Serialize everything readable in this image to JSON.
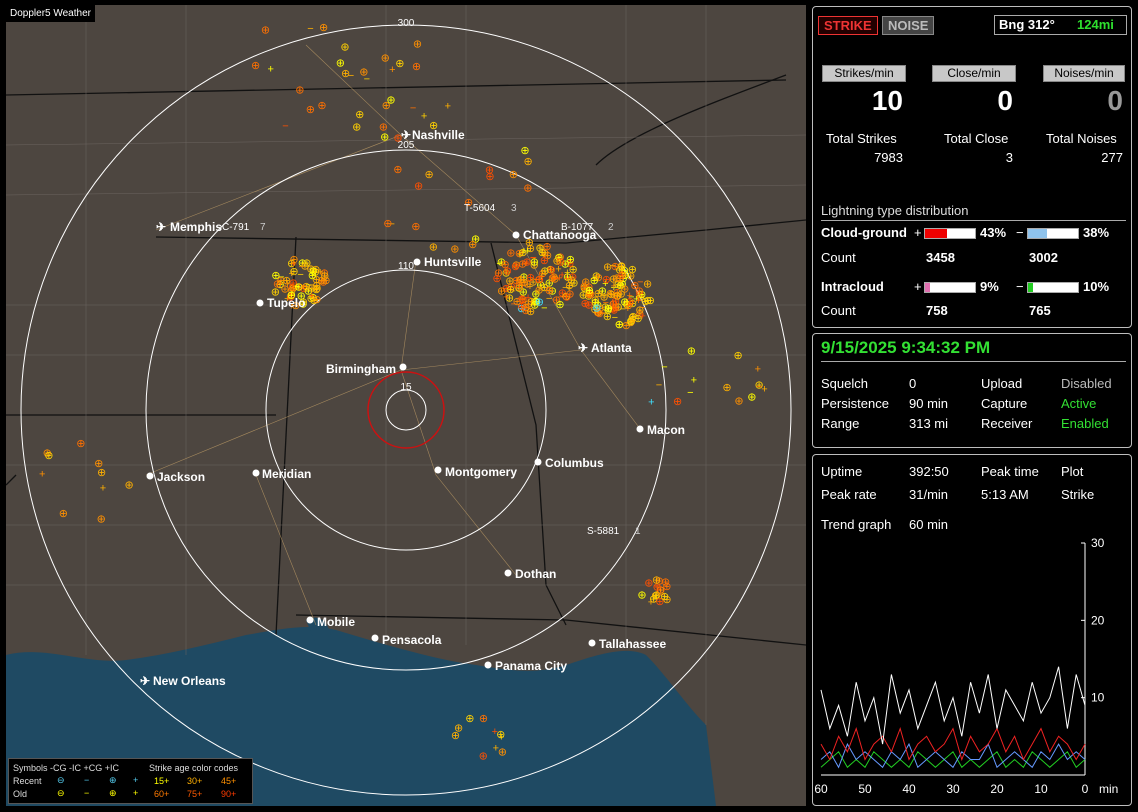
{
  "map": {
    "brand": "Doppler5 Weather",
    "range_rings": [
      "300",
      "205",
      "110",
      "15"
    ],
    "cities": [
      {
        "name": "Nashville",
        "kind": "airport"
      },
      {
        "name": "Memphis",
        "kind": "airport"
      },
      {
        "name": "Chattanooga",
        "kind": "city"
      },
      {
        "name": "Huntsville",
        "kind": "city"
      },
      {
        "name": "Tupelo",
        "kind": "city"
      },
      {
        "name": "Birmingham",
        "kind": "city"
      },
      {
        "name": "Atlanta",
        "kind": "airport"
      },
      {
        "name": "Macon",
        "kind": "city"
      },
      {
        "name": "Jackson",
        "kind": "city"
      },
      {
        "name": "Meridian",
        "kind": "city"
      },
      {
        "name": "Montgomery",
        "kind": "city"
      },
      {
        "name": "Columbus",
        "kind": "city"
      },
      {
        "name": "Dothan",
        "kind": "city"
      },
      {
        "name": "Mobile",
        "kind": "city"
      },
      {
        "name": "Pensacola",
        "kind": "city"
      },
      {
        "name": "Tallahassee",
        "kind": "city"
      },
      {
        "name": "Panama City",
        "kind": "city"
      },
      {
        "name": "New Orleans",
        "kind": "airport"
      }
    ],
    "storm_tags": [
      "C-791",
      "T-5604",
      "B-1077",
      "S-5881"
    ],
    "tag_suffixes": [
      "7",
      "3",
      "2",
      "1"
    ],
    "legend": {
      "title": "Symbols -CG   -IC  +CG  +IC",
      "age_title": "Strike age color codes",
      "recent": "Recent",
      "old": "Old",
      "recent_ages": [
        "15+",
        "30+",
        "45+"
      ],
      "old_ages": [
        "60+",
        "75+",
        "90+"
      ]
    },
    "colors": {
      "land": "#4d4640",
      "water": "#1f4a63",
      "rings": "#ffffff",
      "close_ring": "#cc1111"
    }
  },
  "panel1": {
    "strike_tab": "STRIKE",
    "noise_tab": "NOISE",
    "bearing": "Bng 312°",
    "distance": "124mi",
    "rate_headers": [
      "Strikes/min",
      "Close/min",
      "Noises/min"
    ],
    "rates": [
      "10",
      "0",
      "0"
    ],
    "totals_labels": [
      "Total Strikes",
      "Total Close",
      "Total Noises"
    ],
    "totals": [
      "7983",
      "3",
      "277"
    ],
    "dist_title": "Lightning type distribution",
    "cg_label": "Cloud-ground",
    "ic_label": "Intracloud",
    "count_label": "Count",
    "plus": "+",
    "minus": "−",
    "cg_pos_pct": "43%",
    "cg_neg_pct": "38%",
    "cg_pos_count": "3458",
    "cg_neg_count": "3002",
    "ic_pos_pct": "9%",
    "ic_neg_pct": "10%",
    "ic_pos_count": "758",
    "ic_neg_count": "765",
    "bars": {
      "cg_pos": 0.43,
      "cg_neg": 0.38,
      "ic_pos": 0.09,
      "ic_neg": 0.1
    },
    "bar_colors": {
      "cg_pos": "#ee0000",
      "cg_neg": "#8fc3ec",
      "ic_pos": "#e070b0",
      "ic_neg": "#22cc22"
    }
  },
  "panel2": {
    "datetime": "9/15/2025 9:34:32 PM",
    "rows": [
      {
        "k1": "Squelch",
        "v1": "0",
        "k2": "Upload",
        "v2": "Disabled"
      },
      {
        "k1": "Persistence",
        "v1": "90 min",
        "k2": "Capture",
        "v2": "Active"
      },
      {
        "k1": "Range",
        "v1": "313 mi",
        "k2": "Receiver",
        "v2": "Enabled"
      }
    ]
  },
  "panel3": {
    "uptime_label": "Uptime",
    "uptime": "392:50",
    "peak_time_label": "Peak time",
    "plot_label": "Plot",
    "peak_rate_label": "Peak rate",
    "peak_rate": "31/min",
    "peak_time": "5:13 AM",
    "plot": "Strike",
    "trend_label": "Trend graph",
    "trend_value": "60 min",
    "y_ticks": [
      "30",
      "20",
      "10"
    ],
    "x_ticks": [
      "60",
      "50",
      "40",
      "30",
      "20",
      "10",
      "0"
    ],
    "x_unit": "min"
  },
  "chart_data": {
    "type": "line",
    "xlabel": "min",
    "xlim": [
      60,
      0
    ],
    "ylim": [
      0,
      30
    ],
    "x": [
      60,
      58,
      56,
      54,
      52,
      50,
      48,
      46,
      44,
      42,
      40,
      38,
      36,
      34,
      32,
      30,
      28,
      26,
      24,
      22,
      20,
      18,
      16,
      14,
      12,
      10,
      8,
      6,
      4,
      2,
      0
    ],
    "series": [
      {
        "color": "#ffffff",
        "values": [
          11,
          6,
          9,
          5,
          12,
          7,
          10,
          4,
          13,
          8,
          11,
          6,
          9,
          12,
          7,
          10,
          5,
          12,
          8,
          13,
          6,
          11,
          9,
          7,
          12,
          8,
          10,
          14,
          6,
          13,
          9
        ]
      },
      {
        "color": "#ee2222",
        "values": [
          4,
          2,
          5,
          3,
          6,
          2,
          4,
          5,
          3,
          6,
          2,
          4,
          5,
          3,
          4,
          6,
          2,
          5,
          3,
          4,
          6,
          3,
          5,
          2,
          4,
          6,
          3,
          5,
          4,
          2,
          4
        ]
      },
      {
        "color": "#6699ff",
        "values": [
          2,
          3,
          1,
          4,
          2,
          3,
          2,
          1,
          3,
          2,
          4,
          1,
          2,
          3,
          2,
          1,
          3,
          2,
          2,
          4,
          1,
          2,
          3,
          2,
          1,
          3,
          2,
          4,
          2,
          3,
          2
        ]
      },
      {
        "color": "#22cc22",
        "values": [
          1,
          2,
          3,
          1,
          2,
          1,
          3,
          2,
          1,
          2,
          1,
          3,
          2,
          1,
          2,
          3,
          1,
          2,
          1,
          2,
          3,
          1,
          2,
          1,
          3,
          2,
          1,
          2,
          3,
          1,
          2
        ]
      }
    ]
  }
}
